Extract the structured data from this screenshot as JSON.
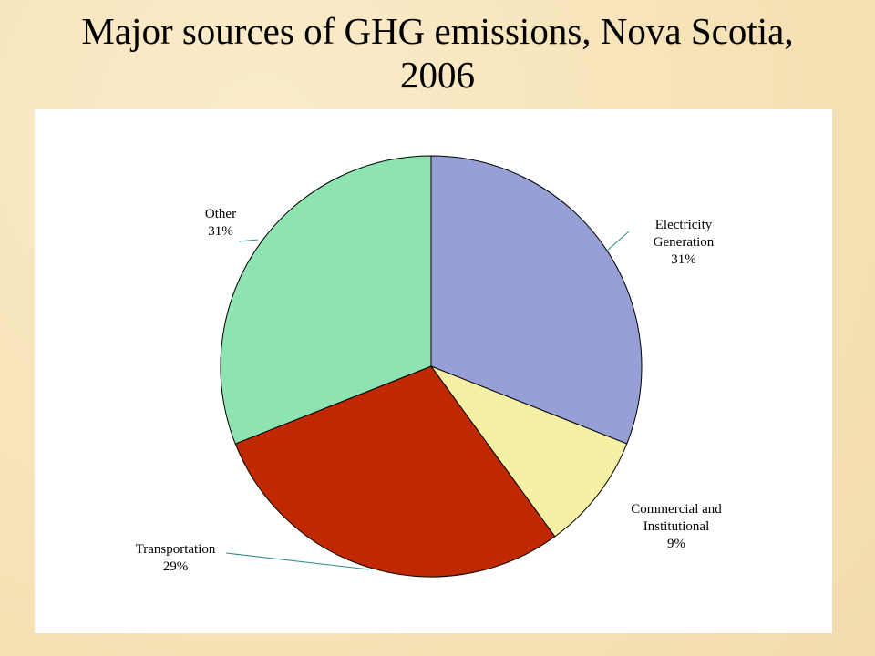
{
  "chart_data": {
    "type": "pie",
    "title": "Major sources of GHG emissions, Nova Scotia, 2006",
    "categories": [
      "Electricity Generation",
      "Commercial and Institutional",
      "Transportation",
      "Other"
    ],
    "values": [
      31,
      9,
      29,
      31
    ],
    "value_labels": [
      "31%",
      "9%",
      "29%",
      "31%"
    ],
    "colors": [
      "#96a0d6",
      "#f4f0a4",
      "#c02800",
      "#8ee4b0"
    ]
  }
}
